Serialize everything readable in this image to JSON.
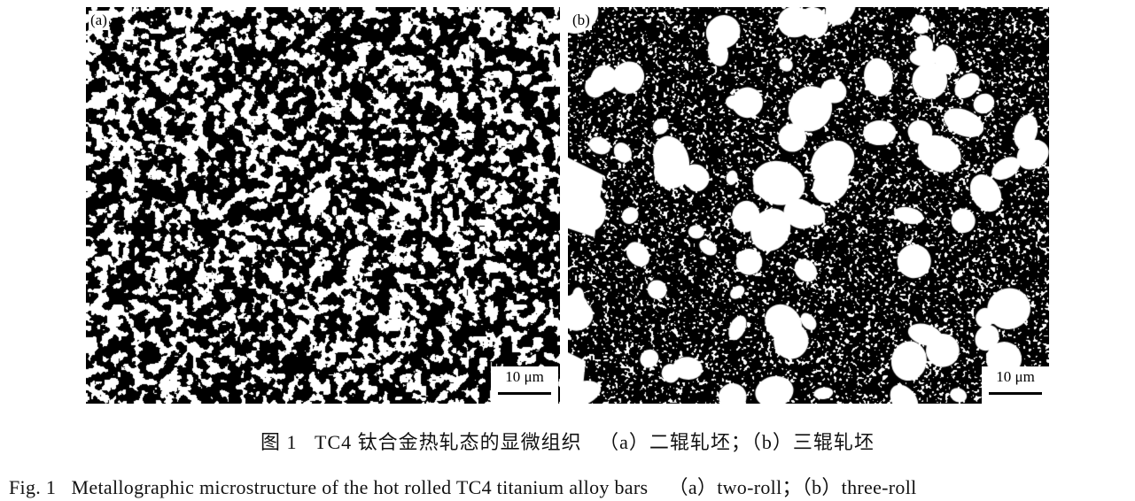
{
  "figure": {
    "panels": [
      {
        "label": "(a)",
        "scale_bar": "10 μm"
      },
      {
        "label": "(b)",
        "scale_bar": "10 μm"
      }
    ],
    "caption_cn": "图 1   TC4 钛合金热轧态的显微组织   （a）二辊轧坯；（b）三辊轧坯",
    "caption_en": "Fig. 1   Metallographic microstructure of the hot rolled TC4 titanium alloy bars    （a）two-roll；（b）three-roll"
  }
}
